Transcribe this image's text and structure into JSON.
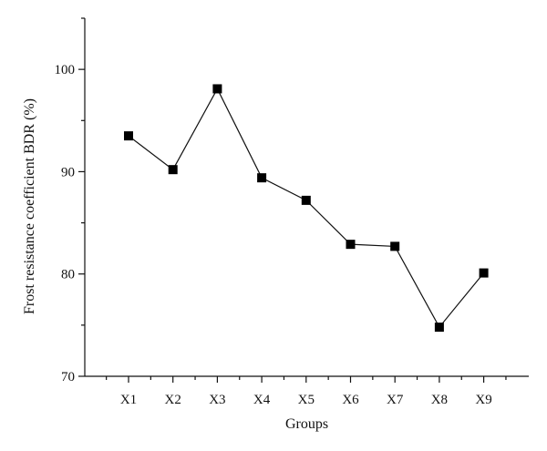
{
  "chart_data": {
    "type": "line",
    "title": "",
    "xlabel": "Groups",
    "ylabel": "Frost resistance coefficient BDR (%)",
    "categories": [
      "X1",
      "X2",
      "X3",
      "X4",
      "X5",
      "X6",
      "X7",
      "X8",
      "X9"
    ],
    "series": [
      {
        "values": [
          93.5,
          90.2,
          98.1,
          89.4,
          87.2,
          82.9,
          82.7,
          74.8,
          80.1
        ]
      }
    ],
    "ylim": [
      70,
      105
    ],
    "yticks": [
      70,
      80,
      90,
      100
    ],
    "ytick_labels": [
      "70",
      "80",
      "90",
      "100"
    ],
    "grid": false,
    "legend": "none",
    "marker": "square",
    "colors": {
      "line": "#111111",
      "marker": "#000000"
    }
  }
}
